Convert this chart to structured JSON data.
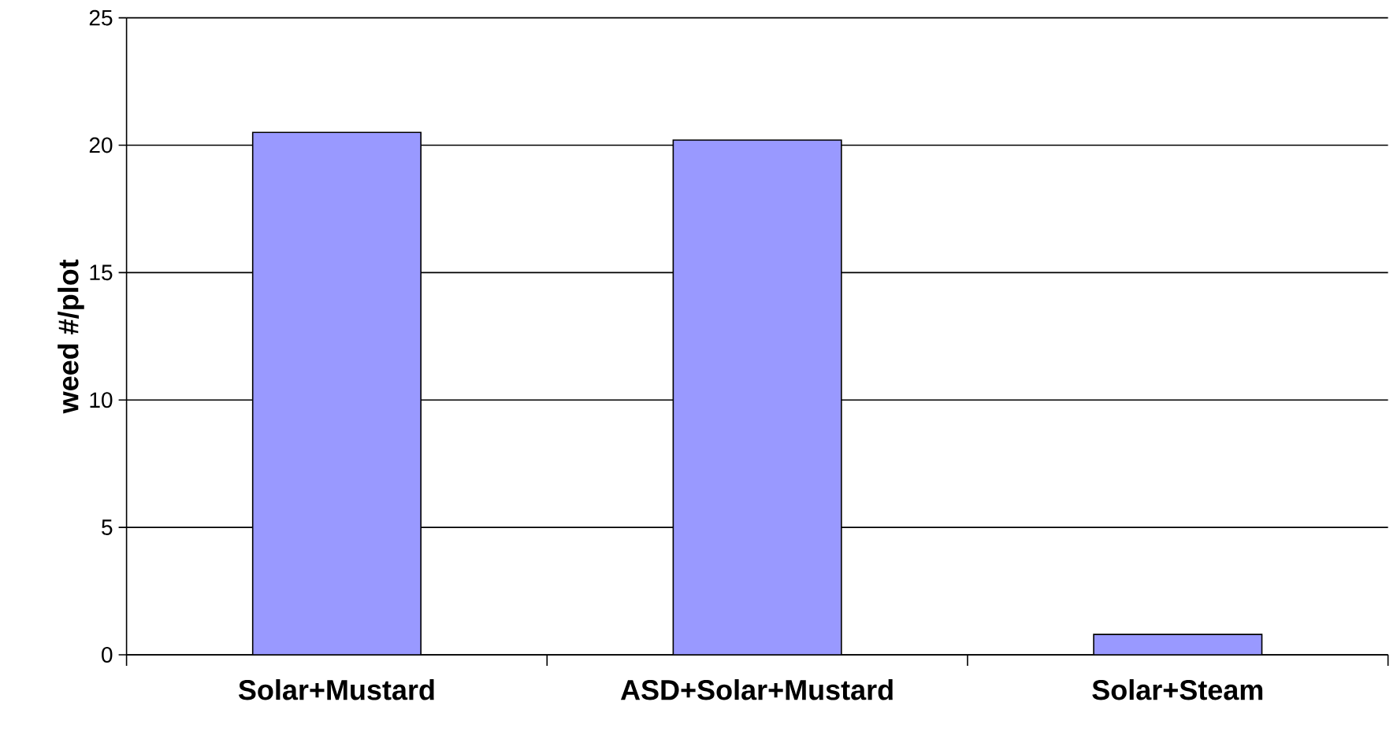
{
  "chart_data": {
    "type": "bar",
    "ylabel": "weed #/plot",
    "categories": [
      "Solar+Mustard",
      "ASD+Solar+Mustard",
      "Solar+Steam"
    ],
    "values": [
      20.5,
      20.2,
      0.8
    ],
    "color": "#9999ff",
    "ylim": [
      0,
      25
    ],
    "yticks": [
      0,
      5,
      10,
      15,
      20,
      25
    ],
    "grid": "y"
  }
}
